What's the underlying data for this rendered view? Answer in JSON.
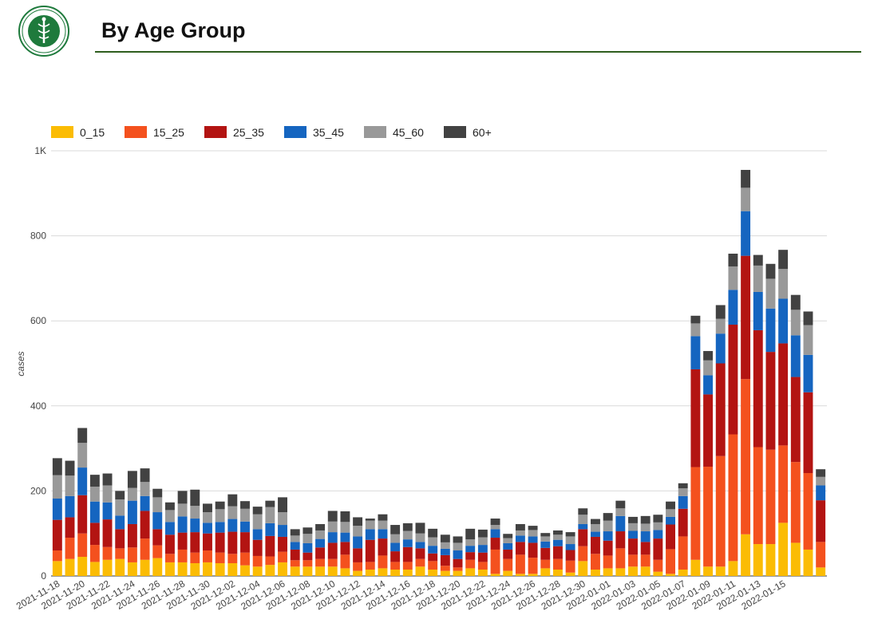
{
  "header": {
    "title": "By Age Group"
  },
  "chart_data": {
    "type": "bar",
    "stacked": true,
    "xlabel": "",
    "ylabel": "cases",
    "ylim": [
      0,
      1000
    ],
    "yticks": [
      "0",
      "200",
      "400",
      "600",
      "800",
      "1K"
    ],
    "grid": true,
    "legend_position": "top-left",
    "series": [
      {
        "name": "0_15",
        "color": "#fbbc04",
        "values": [
          35,
          40,
          45,
          33,
          38,
          40,
          32,
          38,
          42,
          32,
          32,
          30,
          32,
          30,
          30,
          25,
          22,
          26,
          32,
          22,
          22,
          22,
          22,
          18,
          12,
          15,
          18,
          15,
          15,
          22,
          15,
          12,
          12,
          18,
          15,
          5,
          12,
          5,
          5,
          18,
          15,
          8,
          35,
          15,
          18,
          18,
          22,
          22,
          10,
          5,
          15,
          38,
          22,
          22,
          35,
          98,
          75,
          75,
          125,
          78,
          62,
          20
        ]
      },
      {
        "name": "15_25",
        "color": "#f4511e",
        "values": [
          25,
          50,
          55,
          40,
          30,
          25,
          35,
          50,
          30,
          20,
          30,
          25,
          28,
          25,
          22,
          30,
          25,
          20,
          25,
          15,
          15,
          18,
          18,
          32,
          20,
          18,
          30,
          18,
          18,
          18,
          20,
          12,
          8,
          20,
          18,
          57,
          28,
          45,
          38,
          20,
          25,
          28,
          35,
          37,
          30,
          47,
          28,
          28,
          28,
          58,
          78,
          218,
          235,
          260,
          298,
          365,
          228,
          222,
          182,
          190,
          180,
          60
        ]
      },
      {
        "name": "25_35",
        "color": "#b31412",
        "values": [
          72,
          48,
          90,
          52,
          65,
          45,
          55,
          65,
          38,
          45,
          40,
          48,
          40,
          47,
          52,
          48,
          38,
          48,
          35,
          25,
          18,
          27,
          38,
          30,
          33,
          52,
          40,
          25,
          35,
          25,
          18,
          25,
          20,
          18,
          22,
          28,
          22,
          30,
          35,
          28,
          30,
          25,
          40,
          40,
          35,
          40,
          38,
          30,
          50,
          58,
          65,
          230,
          170,
          218,
          258,
          290,
          275,
          230,
          240,
          200,
          190,
          98
        ]
      },
      {
        "name": "35_45",
        "color": "#1565c0",
        "values": [
          50,
          50,
          65,
          50,
          40,
          32,
          55,
          35,
          40,
          30,
          38,
          32,
          25,
          25,
          30,
          25,
          25,
          30,
          28,
          18,
          22,
          20,
          25,
          22,
          28,
          25,
          22,
          20,
          18,
          15,
          18,
          15,
          20,
          15,
          18,
          20,
          15,
          15,
          15,
          15,
          15,
          14,
          12,
          12,
          22,
          36,
          18,
          25,
          20,
          18,
          30,
          78,
          45,
          70,
          82,
          105,
          90,
          102,
          105,
          98,
          88,
          35
        ]
      },
      {
        "name": "45_60",
        "color": "#999999",
        "values": [
          55,
          48,
          58,
          35,
          40,
          38,
          30,
          33,
          35,
          28,
          30,
          30,
          25,
          30,
          30,
          30,
          35,
          38,
          30,
          15,
          22,
          20,
          25,
          25,
          25,
          20,
          20,
          20,
          20,
          20,
          20,
          15,
          18,
          15,
          18,
          10,
          12,
          12,
          15,
          12,
          12,
          18,
          22,
          18,
          25,
          18,
          18,
          18,
          18,
          18,
          18,
          30,
          35,
          35,
          55,
          55,
          62,
          70,
          70,
          60,
          70,
          20
        ]
      },
      {
        "name": "60+",
        "color": "#424242",
        "values": [
          40,
          35,
          35,
          28,
          28,
          20,
          40,
          32,
          20,
          18,
          30,
          38,
          20,
          18,
          28,
          18,
          18,
          15,
          35,
          15,
          15,
          15,
          25,
          25,
          20,
          5,
          15,
          22,
          18,
          25,
          20,
          18,
          15,
          25,
          18,
          15,
          10,
          15,
          10,
          8,
          10,
          10,
          15,
          12,
          18,
          18,
          15,
          18,
          18,
          18,
          12,
          18,
          22,
          32,
          30,
          42,
          25,
          35,
          45,
          35,
          32,
          18
        ]
      }
    ],
    "x_tick_labels": [
      "2021-11-18",
      "2021-11-20",
      "2021-11-22",
      "2021-11-24",
      "2021-11-26",
      "2021-11-28",
      "2021-11-30",
      "2021-12-02",
      "2021-12-04",
      "2021-12-06",
      "2021-12-08",
      "2021-12-10",
      "2021-12-12",
      "2021-12-14",
      "2021-12-16",
      "2021-12-18",
      "2021-12-20",
      "2021-12-22",
      "2021-12-24",
      "2021-12-26",
      "2021-12-28",
      "2021-12-30",
      "2022-01-01",
      "2022-01-03",
      "2022-01-05",
      "2022-01-07",
      "2022-01-09",
      "2022-01-11",
      "2022-01-13",
      "2022-01-15"
    ]
  }
}
